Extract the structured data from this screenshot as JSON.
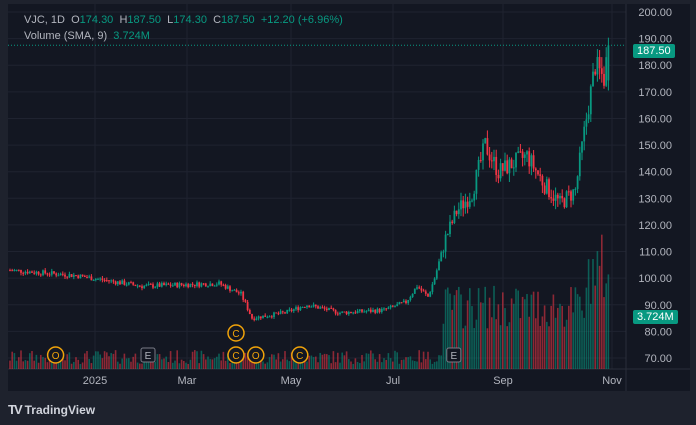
{
  "header": {
    "symbol": "VJC, 1D",
    "open_label": "O",
    "open": "174.30",
    "high_label": "H",
    "high": "187.50",
    "low_label": "L",
    "low": "174.30",
    "close_label": "C",
    "close": "187.50",
    "change": "+12.20 (+6.96%)"
  },
  "volume": {
    "label": "Volume (SMA, 9)",
    "value": "3.724M"
  },
  "price_tag": "187.50",
  "volume_tag": "3.724M",
  "price_axis": [
    "200.00",
    "190.00",
    "180.00",
    "170.00",
    "160.00",
    "150.00",
    "140.00",
    "130.00",
    "120.00",
    "110.00",
    "100.00",
    "90.00",
    "80.00",
    "70.00"
  ],
  "time_axis": [
    "2025",
    "Mar",
    "May",
    "Jul",
    "Sep",
    "Nov"
  ],
  "markers": [
    {
      "t": "O",
      "day": 18
    },
    {
      "t": "E",
      "day": 60
    },
    {
      "t": "C",
      "day": 100
    },
    {
      "t": "C",
      "day": 100
    },
    {
      "t": "O",
      "day": 109
    },
    {
      "t": "C",
      "day": 129
    },
    {
      "t": "E",
      "day": 199
    }
  ],
  "colors": {
    "up": "#089981",
    "down": "#f23645",
    "bg": "#131722",
    "marker": "#f0a30a"
  },
  "chart_data": {
    "type": "candlestick",
    "path": [
      [
        0,
        103
      ],
      [
        30,
        101
      ],
      [
        60,
        97
      ],
      [
        95,
        98
      ],
      [
        105,
        94
      ],
      [
        110,
        85
      ],
      [
        125,
        87
      ],
      [
        135,
        90
      ],
      [
        150,
        87
      ],
      [
        170,
        88
      ],
      [
        180,
        91
      ],
      [
        185,
        97
      ],
      [
        190,
        93
      ],
      [
        193,
        100
      ],
      [
        198,
        115
      ],
      [
        203,
        125
      ],
      [
        210,
        132
      ],
      [
        216,
        150
      ],
      [
        222,
        140
      ],
      [
        235,
        146
      ],
      [
        243,
        135
      ],
      [
        250,
        128
      ],
      [
        257,
        133
      ],
      [
        262,
        160
      ],
      [
        266,
        180
      ],
      [
        270,
        175
      ],
      [
        272,
        187.5
      ]
    ],
    "ylim": [
      65,
      200
    ]
  },
  "watermark": "TradingView"
}
